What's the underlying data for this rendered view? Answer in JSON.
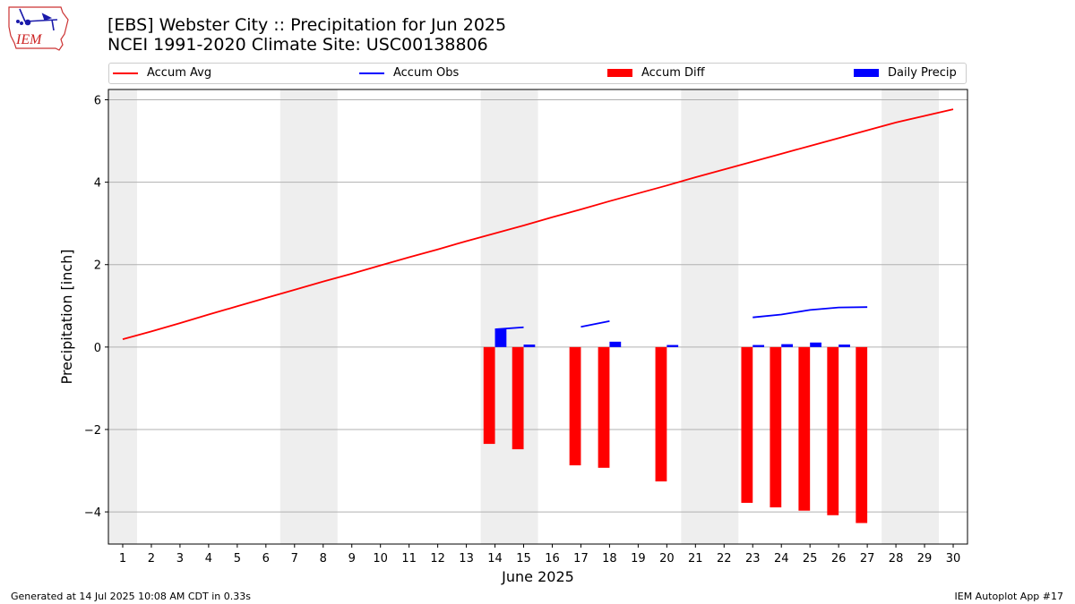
{
  "logo": {
    "text": "IEM",
    "color": "#cc2222"
  },
  "title_line1": "[EBS] Webster City :: Precipitation for Jun 2025",
  "title_line2": "NCEI 1991-2020 Climate Site: USC00138806",
  "legend": [
    {
      "label": "Accum Avg",
      "kind": "line",
      "color": "#ff0000"
    },
    {
      "label": "Accum Obs",
      "kind": "line",
      "color": "#0000ff"
    },
    {
      "label": "Accum Diff",
      "kind": "bar",
      "color": "#ff0000"
    },
    {
      "label": "Daily Precip",
      "kind": "bar",
      "color": "#0000ff"
    }
  ],
  "footer_left": "Generated at 14 Jul 2025 10:08 AM CDT in 0.33s",
  "footer_right": "IEM Autoplot App #17",
  "chart_data": {
    "type": "bar",
    "xlabel": "June 2025",
    "ylabel": "Precipitation [inch]",
    "x": [
      1,
      2,
      3,
      4,
      5,
      6,
      7,
      8,
      9,
      10,
      11,
      12,
      13,
      14,
      15,
      16,
      17,
      18,
      19,
      20,
      21,
      22,
      23,
      24,
      25,
      26,
      27,
      28,
      29,
      30
    ],
    "xlim": [
      0.5,
      30.5
    ],
    "ylim": [
      -4.78,
      6.25
    ],
    "yticks": [
      -4,
      -2,
      0,
      2,
      4,
      6
    ],
    "ytick_labels": [
      "−4",
      "−2",
      "0",
      "2",
      "4",
      "6"
    ],
    "grid": true,
    "weekend_shading": [
      [
        0.5,
        1.5
      ],
      [
        6.5,
        8.5
      ],
      [
        13.5,
        15.5
      ],
      [
        20.5,
        22.5
      ],
      [
        27.5,
        29.5
      ]
    ],
    "shade_color": "#eeeeee",
    "accum_avg": [
      0.19,
      0.38,
      0.58,
      0.78,
      0.98,
      1.18,
      1.38,
      1.57,
      1.77,
      1.97,
      2.17,
      2.37,
      2.57,
      2.77,
      2.97,
      3.17,
      3.37,
      3.57,
      3.77,
      3.97,
      4.17,
      4.37,
      4.57,
      4.77,
      4.97,
      5.17,
      5.37,
      5.57,
      5.77,
      5.77
    ],
    "accum_avg_full": [
      0.19,
      0.38,
      0.58,
      0.79,
      0.99,
      1.19,
      1.39,
      1.59,
      1.78,
      1.98,
      2.18,
      2.37,
      2.57,
      2.76,
      2.95,
      3.15,
      3.34,
      3.54,
      3.73,
      3.92,
      4.12,
      4.31,
      4.5,
      4.69,
      4.88,
      5.07,
      5.26,
      5.45,
      5.61,
      5.77
    ],
    "accum_obs": [
      null,
      null,
      null,
      null,
      null,
      null,
      null,
      null,
      null,
      null,
      null,
      null,
      null,
      0.43,
      0.48,
      null,
      0.49,
      0.63,
      null,
      null,
      null,
      null,
      0.72,
      0.79,
      0.9,
      0.96,
      0.97,
      null,
      null,
      null
    ],
    "accum_diff": [
      null,
      null,
      null,
      null,
      null,
      null,
      null,
      null,
      null,
      null,
      null,
      null,
      null,
      -2.35,
      -2.48,
      null,
      -2.87,
      -2.93,
      null,
      -3.26,
      null,
      null,
      -3.78,
      -3.89,
      -3.97,
      -4.08,
      -4.27,
      null,
      null,
      null
    ],
    "daily_precip": [
      null,
      null,
      null,
      null,
      null,
      null,
      null,
      null,
      null,
      null,
      null,
      null,
      null,
      0.43,
      0.06,
      null,
      null,
      0.13,
      null,
      0.05,
      null,
      null,
      0.05,
      0.07,
      0.11,
      0.06,
      null,
      null,
      null,
      null
    ]
  }
}
